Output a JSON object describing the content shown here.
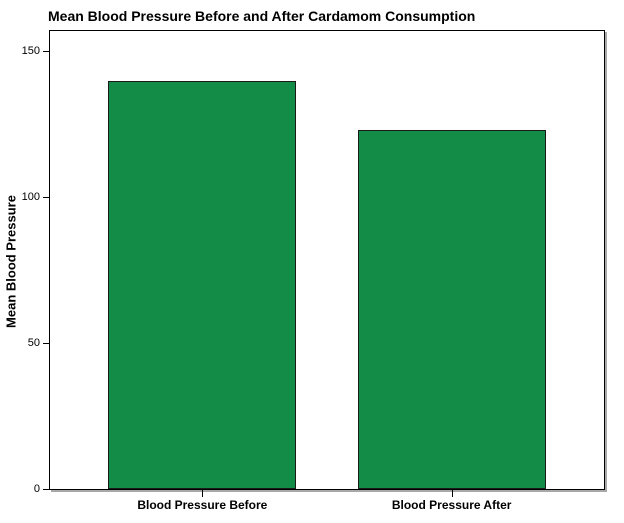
{
  "chart_data": {
    "type": "bar",
    "title": "Mean Blood Pressure Before and After Cardamom Consumption",
    "xlabel": "",
    "ylabel": "Mean Blood Pressure",
    "categories": [
      "Blood Pressure Before",
      "Blood Pressure After"
    ],
    "values": [
      140,
      123
    ],
    "yticks": [
      0,
      50,
      100,
      150
    ],
    "ylim": [
      0,
      157
    ],
    "grid": false,
    "legend": "none",
    "bar_color": "#128C46",
    "bar_border_color": "#1a1a1a",
    "frame_color": "#000000",
    "background_color": "#ffffff"
  }
}
